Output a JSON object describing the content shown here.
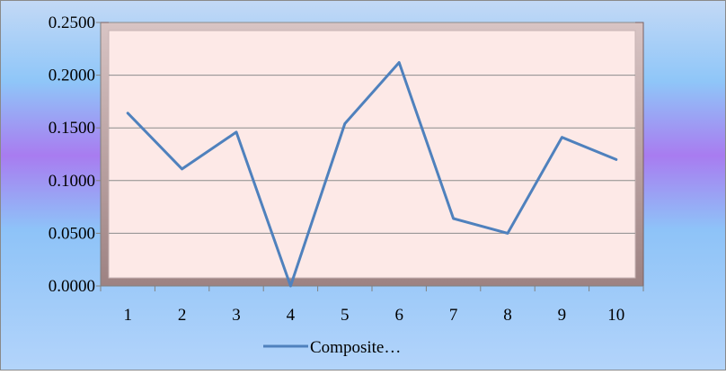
{
  "chart_data": {
    "type": "line",
    "title": "",
    "xlabel": "",
    "ylabel": "",
    "categories": [
      "1",
      "2",
      "3",
      "4",
      "5",
      "6",
      "7",
      "8",
      "9",
      "10"
    ],
    "ylim": [
      0,
      0.25
    ],
    "yticks": [
      "0.0000",
      "0.0500",
      "0.1000",
      "0.1500",
      "0.2000",
      "0.2500"
    ],
    "grid": true,
    "legend_position": "bottom",
    "series": [
      {
        "name": "Composite…",
        "color": "#4f81bd",
        "values": [
          0.164,
          0.111,
          0.146,
          0.0,
          0.154,
          0.212,
          0.064,
          0.05,
          0.141,
          0.12
        ]
      }
    ],
    "colors": {
      "plot_fill": "#fde9e7",
      "plot_frame": "#b49a9a",
      "gridline": "#8c8c8c",
      "axis": "#808080",
      "background_top": "#b8d4f7",
      "background_mid": "#a97cf0",
      "background_bottom": "#a9d0fa"
    }
  }
}
